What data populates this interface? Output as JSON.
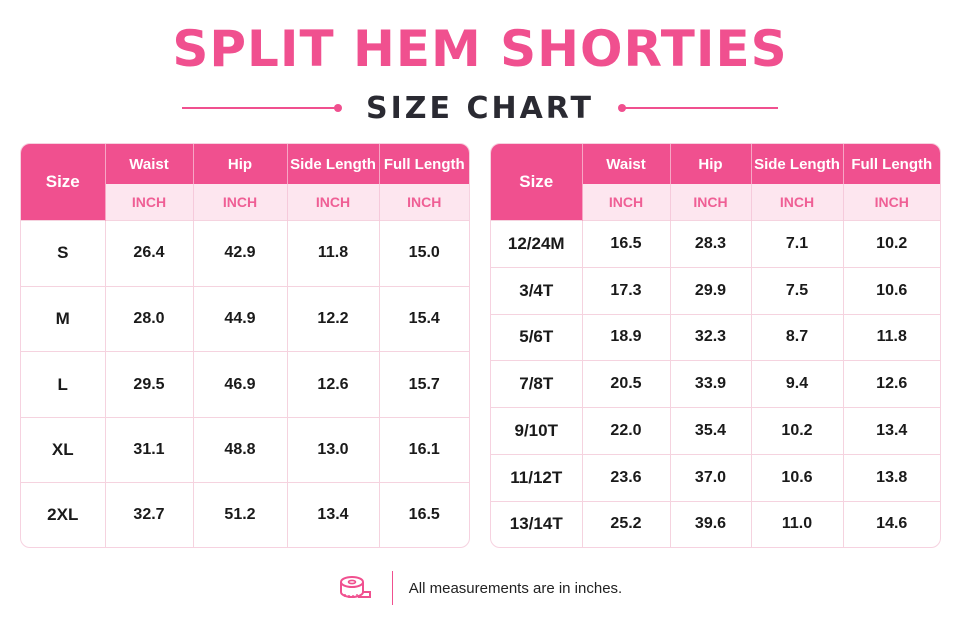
{
  "title": "SPLIT HEM SHORTIES",
  "subtitle": "SIZE CHART",
  "colors": {
    "accent": "#f0508f",
    "unit_bg": "#fde6ef",
    "text": "#1a1a1a"
  },
  "tables": [
    {
      "headers": [
        "Size",
        "Waist",
        "Hip",
        "Side Length",
        "Full Length"
      ],
      "units": [
        "INCH",
        "INCH",
        "INCH",
        "INCH"
      ],
      "rows": [
        [
          "S",
          "26.4",
          "42.9",
          "11.8",
          "15.0"
        ],
        [
          "M",
          "28.0",
          "44.9",
          "12.2",
          "15.4"
        ],
        [
          "L",
          "29.5",
          "46.9",
          "12.6",
          "15.7"
        ],
        [
          "XL",
          "31.1",
          "48.8",
          "13.0",
          "16.1"
        ],
        [
          "2XL",
          "32.7",
          "51.2",
          "13.4",
          "16.5"
        ]
      ]
    },
    {
      "headers": [
        "Size",
        "Waist",
        "Hip",
        "Side Length",
        "Full Length"
      ],
      "units": [
        "INCH",
        "INCH",
        "INCH",
        "INCH"
      ],
      "rows": [
        [
          "12/24M",
          "16.5",
          "28.3",
          "7.1",
          "10.2"
        ],
        [
          "3/4T",
          "17.3",
          "29.9",
          "7.5",
          "10.6"
        ],
        [
          "5/6T",
          "18.9",
          "32.3",
          "8.7",
          "11.8"
        ],
        [
          "7/8T",
          "20.5",
          "33.9",
          "9.4",
          "12.6"
        ],
        [
          "9/10T",
          "22.0",
          "35.4",
          "10.2",
          "13.4"
        ],
        [
          "11/12T",
          "23.6",
          "37.0",
          "10.6",
          "13.8"
        ],
        [
          "13/14T",
          "25.2",
          "39.6",
          "11.0",
          "14.6"
        ]
      ]
    }
  ],
  "footer": {
    "icon": "measuring-tape-icon",
    "note": "All measurements are in inches."
  }
}
